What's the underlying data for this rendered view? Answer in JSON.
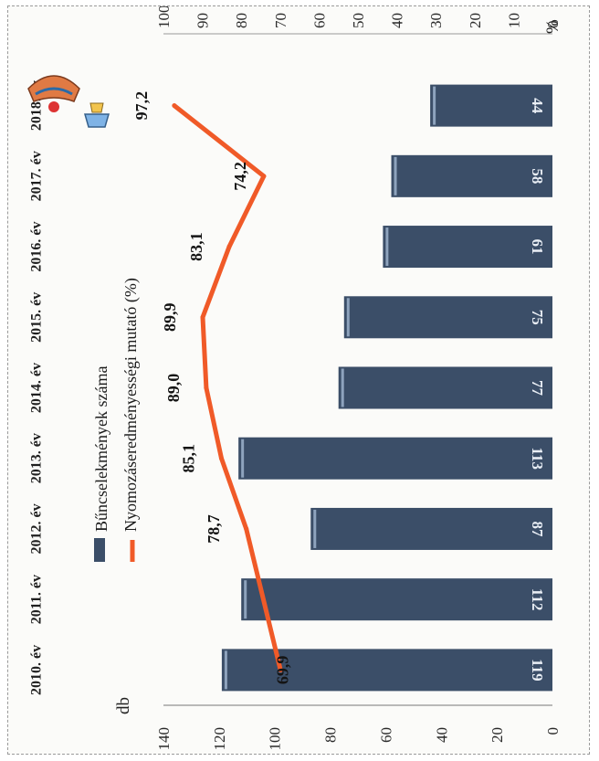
{
  "chart_data": {
    "type": "bar",
    "categories": [
      "2010. év",
      "2011. év",
      "2012. év",
      "2013. év",
      "2014. év",
      "2015. év",
      "2016. év",
      "2017. év",
      "2018. év"
    ],
    "series": [
      {
        "name": "Bűncselekmények száma",
        "type": "bar",
        "axis": "left",
        "values": [
          119,
          112,
          87,
          113,
          77,
          75,
          61,
          58,
          44
        ],
        "color": "#3b4e68"
      },
      {
        "name": "Nyomozáseredményességi mutató (%)",
        "type": "line",
        "axis": "right",
        "values": [
          69.9,
          null,
          78.7,
          85.1,
          89.0,
          89.9,
          83.1,
          74.2,
          97.2
        ],
        "labels": [
          "69,9",
          "",
          "78,7",
          "85,1",
          "89,0",
          "89,9",
          "83,1",
          "74,2",
          "97,2"
        ],
        "color": "#f05a28"
      }
    ],
    "y_left": {
      "label": "db",
      "min": 0,
      "max": 140,
      "ticks": [
        0,
        20,
        40,
        60,
        80,
        100,
        120,
        140
      ]
    },
    "y_right": {
      "label": "%",
      "min": 0,
      "max": 100,
      "ticks": [
        0,
        10,
        20,
        30,
        40,
        50,
        60,
        70,
        80,
        90,
        100
      ]
    },
    "orientation": "rotated-90-clockwise",
    "legend_placement": "top"
  }
}
